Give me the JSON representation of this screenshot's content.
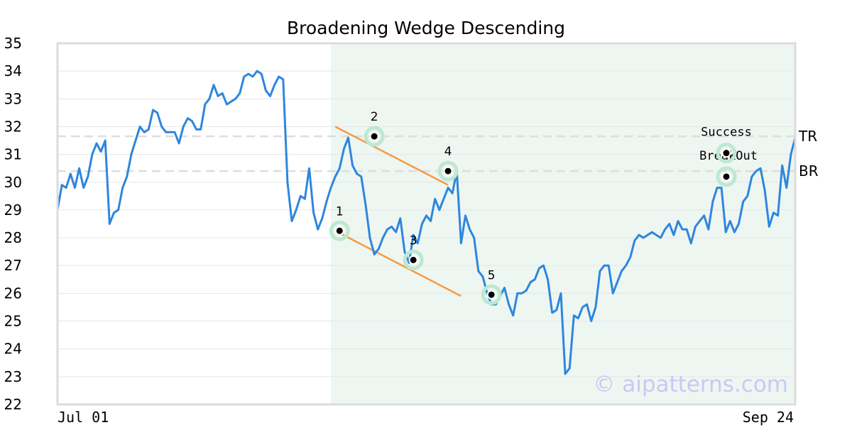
{
  "chart_data": {
    "type": "line",
    "title": "Broadening Wedge Descending",
    "xlabel": "",
    "ylabel": "",
    "ylim": [
      22,
      35
    ],
    "yticks": [
      22,
      23,
      24,
      25,
      26,
      27,
      28,
      29,
      30,
      31,
      32,
      33,
      34,
      35
    ],
    "x_tick_labels": [
      "Jul 01",
      "Sep 24"
    ],
    "x_range_days": [
      0,
      85
    ],
    "grid": "horizontal",
    "pattern_window_days": [
      31.5,
      91
    ],
    "series": [
      {
        "color": "#2e86de",
        "x_days": [
          0,
          0.5,
          1,
          1.5,
          2,
          2.5,
          3,
          3.5,
          4,
          4.5,
          5,
          5.5,
          6,
          6.5,
          7,
          7.5,
          8,
          8.5,
          9,
          9.5,
          10,
          10.5,
          11,
          11.5,
          12,
          12.5,
          13,
          13.5,
          14,
          14.5,
          15,
          15.5,
          16,
          16.5,
          17,
          17.5,
          18,
          18.5,
          19,
          19.5,
          20,
          20.5,
          21,
          21.5,
          22,
          22.5,
          23,
          23.5,
          24,
          24.5,
          25,
          25.5,
          26,
          26.5,
          27,
          27.5,
          28,
          28.5,
          29,
          29.5,
          30,
          30.5,
          31,
          31.5,
          32,
          32.5,
          33,
          33.5,
          34,
          34.5,
          35,
          35.5,
          36,
          36.5,
          37,
          37.5,
          38,
          38.5,
          39,
          39.5,
          40,
          40.5,
          41,
          41.5,
          42,
          42.5,
          43,
          43.5,
          44,
          44.5,
          45,
          45.5,
          46,
          46.5,
          47,
          47.5,
          48,
          48.5,
          49,
          49.5,
          50,
          50.5,
          51,
          51.5,
          52,
          52.5,
          53,
          53.5,
          54,
          54.5,
          55,
          55.5,
          56,
          56.5,
          57,
          57.5,
          58,
          58.5,
          59,
          59.5,
          60,
          60.5,
          61,
          61.5,
          62,
          62.5,
          63,
          63.5,
          64,
          64.5,
          65,
          65.5,
          66,
          66.5,
          67,
          67.5,
          68,
          68.5,
          69,
          69.5,
          70,
          70.5,
          71,
          71.5,
          72,
          72.5,
          73,
          73.5,
          74,
          74.5,
          75,
          75.5,
          76,
          76.5,
          77,
          77.5,
          78,
          78.5,
          79,
          79.5,
          80,
          80.5,
          81,
          81.5,
          82,
          82.5,
          83,
          83.5,
          84,
          84.5,
          85
        ],
        "values": [
          29.0,
          29.9,
          29.8,
          30.3,
          29.8,
          30.5,
          29.8,
          30.2,
          31.0,
          31.4,
          31.1,
          31.5,
          28.5,
          28.9,
          29.0,
          29.8,
          30.2,
          31.0,
          31.5,
          32.0,
          31.8,
          31.9,
          32.6,
          32.5,
          32.0,
          31.8,
          31.8,
          31.8,
          31.4,
          32.0,
          32.3,
          32.2,
          31.9,
          31.9,
          32.8,
          33.0,
          33.5,
          33.1,
          33.2,
          32.8,
          32.9,
          33.0,
          33.2,
          33.8,
          33.9,
          33.8,
          34.0,
          33.9,
          33.3,
          33.1,
          33.5,
          33.8,
          33.7,
          30.0,
          28.6,
          29.0,
          29.5,
          29.4,
          30.5,
          28.9,
          28.3,
          28.7,
          29.3,
          29.8,
          30.2,
          30.5,
          31.2,
          31.6,
          30.6,
          30.3,
          30.2,
          29.2,
          28.0,
          27.4,
          27.6,
          28.0,
          28.3,
          28.4,
          28.2,
          28.7,
          27.5,
          27.1,
          28.1,
          27.8,
          28.5,
          28.8,
          28.6,
          29.4,
          29.0,
          29.4,
          29.8,
          29.6,
          30.4,
          27.8,
          28.8,
          28.3,
          28.0,
          26.8,
          26.6,
          26.0,
          25.6,
          25.6,
          25.9,
          26.2,
          25.6,
          25.2,
          26.0,
          26.0,
          26.1,
          26.4,
          26.5,
          26.9,
          27.0,
          26.5,
          25.3,
          25.4,
          26.0,
          23.1,
          23.3,
          25.2,
          25.1,
          25.5,
          25.6,
          25.0,
          25.5,
          26.8,
          27.0,
          27.0,
          26.0,
          26.4,
          26.8,
          27.0,
          27.3,
          27.9,
          28.1,
          28.0,
          28.1,
          28.2,
          28.1,
          28.0,
          28.3,
          28.5,
          28.1,
          28.6,
          28.3,
          28.3,
          27.8,
          28.4,
          28.6,
          28.8,
          28.3,
          29.3,
          29.8,
          29.8,
          28.2,
          28.6,
          28.2,
          28.5,
          29.3,
          29.5,
          30.2,
          30.4,
          30.5,
          29.7,
          28.4,
          28.9,
          28.8,
          30.6,
          29.8,
          31.0,
          31.6
        ],
        "name": ""
      }
    ],
    "horizontal_lines": [
      {
        "label": "TR",
        "value": 31.65
      },
      {
        "label": "BR",
        "value": 30.4
      }
    ],
    "trendlines": [
      {
        "from": [
          32.0,
          32.0
        ],
        "to": [
          45.0,
          29.9
        ],
        "color": "#f59a42"
      },
      {
        "from": [
          32.0,
          28.25
        ],
        "to": [
          46.5,
          25.9
        ],
        "color": "#f59a42"
      }
    ],
    "pivot_points": [
      {
        "label": "1",
        "x": 32.5,
        "y": 28.25,
        "label_side": "above"
      },
      {
        "label": "2",
        "x": 36.5,
        "y": 31.65,
        "label_side": "above"
      },
      {
        "label": "3",
        "x": 41.0,
        "y": 27.2,
        "label_side": "above"
      },
      {
        "label": "4",
        "x": 45.0,
        "y": 30.4,
        "label_side": "above"
      },
      {
        "label": "5",
        "x": 50.0,
        "y": 25.95,
        "label_side": "above"
      }
    ],
    "annotations": [
      {
        "label": "BreakOut",
        "x": 81.5,
        "y": 30.2,
        "label_side": "left"
      },
      {
        "label": "Success",
        "x": 86.5,
        "y": 31.05,
        "label_side": "above"
      }
    ],
    "watermark": "© aipatterns.com",
    "colors": {
      "line": "#2e86de",
      "trendline": "#f59a42",
      "pattern_fill": "#eef6f2",
      "marker_halo": "#bde8d1",
      "reference_line": "#dddddd",
      "watermark": "#c9c9f3"
    }
  }
}
